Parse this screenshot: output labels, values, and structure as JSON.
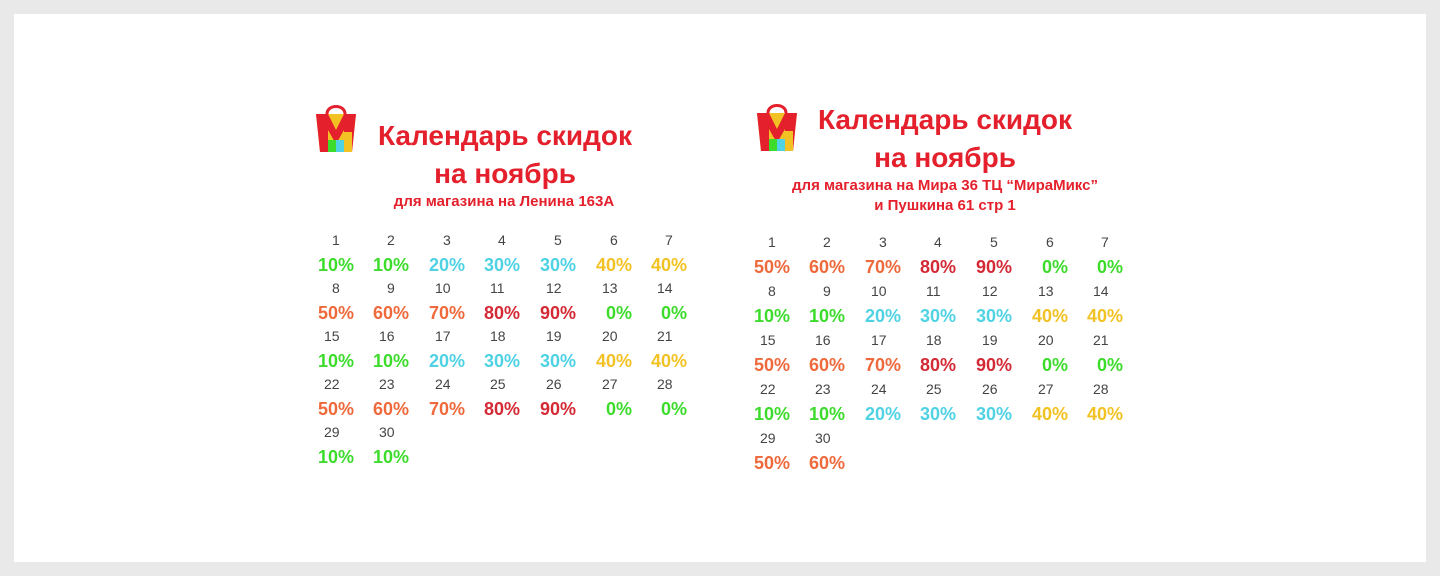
{
  "colors": {
    "title": "#e4202c",
    "10%": "#3ddc2c",
    "20%": "#4fd2e3",
    "30%": "#4fd2e3",
    "40%": "#f2c224",
    "50%": "#ee6a3c",
    "60%": "#ee6a3c",
    "70%": "#ee6a3c",
    "80%": "#d42a36",
    "90%": "#d42a36",
    "0%": "#3ddc2c"
  },
  "panels": [
    {
      "logo": "shopping-bag-m-logo",
      "title_line1": "Календарь скидок",
      "title_line2": "на ноябрь",
      "subtitle_lines": [
        "для магазина на Ленина 163А"
      ],
      "days": [
        {
          "day": "1",
          "discount": "10%"
        },
        {
          "day": "2",
          "discount": "10%"
        },
        {
          "day": "3",
          "discount": "20%"
        },
        {
          "day": "4",
          "discount": "30%"
        },
        {
          "day": "5",
          "discount": "30%"
        },
        {
          "day": "6",
          "discount": "40%"
        },
        {
          "day": "7",
          "discount": "40%"
        },
        {
          "day": "8",
          "discount": "50%"
        },
        {
          "day": "9",
          "discount": "60%"
        },
        {
          "day": "10",
          "discount": "70%"
        },
        {
          "day": "11",
          "discount": "80%"
        },
        {
          "day": "12",
          "discount": "90%"
        },
        {
          "day": "13",
          "discount": "0%"
        },
        {
          "day": "14",
          "discount": "0%"
        },
        {
          "day": "15",
          "discount": "10%"
        },
        {
          "day": "16",
          "discount": "10%"
        },
        {
          "day": "17",
          "discount": "20%"
        },
        {
          "day": "18",
          "discount": "30%"
        },
        {
          "day": "19",
          "discount": "30%"
        },
        {
          "day": "20",
          "discount": "40%"
        },
        {
          "day": "21",
          "discount": "40%"
        },
        {
          "day": "22",
          "discount": "50%"
        },
        {
          "day": "23",
          "discount": "60%"
        },
        {
          "day": "24",
          "discount": "70%"
        },
        {
          "day": "25",
          "discount": "80%"
        },
        {
          "day": "26",
          "discount": "90%"
        },
        {
          "day": "27",
          "discount": "0%"
        },
        {
          "day": "28",
          "discount": "0%"
        },
        {
          "day": "29",
          "discount": "10%"
        },
        {
          "day": "30",
          "discount": "10%"
        }
      ]
    },
    {
      "logo": "shopping-bag-m-logo",
      "title_line1": "Календарь скидок",
      "title_line2": "на ноябрь",
      "subtitle_lines": [
        "для магазина на Мира 36 ТЦ “МираМикс”",
        "и Пушкина 61 стр 1"
      ],
      "days": [
        {
          "day": "1",
          "discount": "50%"
        },
        {
          "day": "2",
          "discount": "60%"
        },
        {
          "day": "3",
          "discount": "70%"
        },
        {
          "day": "4",
          "discount": "80%"
        },
        {
          "day": "5",
          "discount": "90%"
        },
        {
          "day": "6",
          "discount": "0%"
        },
        {
          "day": "7",
          "discount": "0%"
        },
        {
          "day": "8",
          "discount": "10%"
        },
        {
          "day": "9",
          "discount": "10%"
        },
        {
          "day": "10",
          "discount": "20%"
        },
        {
          "day": "11",
          "discount": "30%"
        },
        {
          "day": "12",
          "discount": "30%"
        },
        {
          "day": "13",
          "discount": "40%"
        },
        {
          "day": "14",
          "discount": "40%"
        },
        {
          "day": "15",
          "discount": "50%"
        },
        {
          "day": "16",
          "discount": "60%"
        },
        {
          "day": "17",
          "discount": "70%"
        },
        {
          "day": "18",
          "discount": "80%"
        },
        {
          "day": "19",
          "discount": "90%"
        },
        {
          "day": "20",
          "discount": "0%"
        },
        {
          "day": "21",
          "discount": "0%"
        },
        {
          "day": "22",
          "discount": "10%"
        },
        {
          "day": "23",
          "discount": "10%"
        },
        {
          "day": "24",
          "discount": "20%"
        },
        {
          "day": "25",
          "discount": "30%"
        },
        {
          "day": "26",
          "discount": "30%"
        },
        {
          "day": "27",
          "discount": "40%"
        },
        {
          "day": "28",
          "discount": "40%"
        },
        {
          "day": "29",
          "discount": "50%"
        },
        {
          "day": "30",
          "discount": "60%"
        }
      ]
    }
  ]
}
